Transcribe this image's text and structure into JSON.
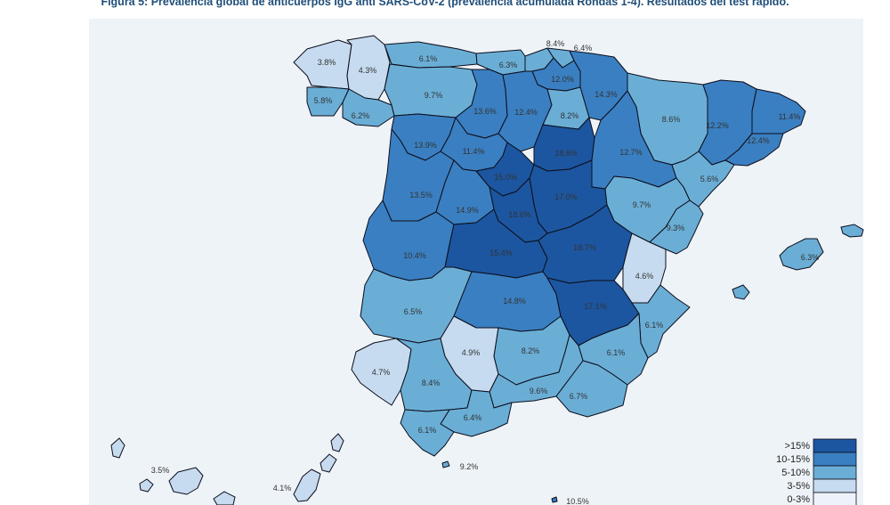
{
  "figure": {
    "title": "Figura 5: Prevalencia global de anticuerpos IgG anti SARS-CoV-2 (prevalencia acumulada Rondas 1-4). Resultados del test rápido."
  },
  "colors": {
    "c0_3": "#eef3fb",
    "c3_5": "#c6dbef",
    "c5_10": "#6aaed6",
    "c10_15": "#3a7fc1",
    "c15": "#1c56a0",
    "panel": "#eef3f8"
  },
  "legend": [
    {
      "label": ">15%",
      "class": "c15"
    },
    {
      "label": "10-15%",
      "class": "c10_15"
    },
    {
      "label": "5-10%",
      "class": "c5_10"
    },
    {
      "label": "3-5%",
      "class": "c3_5"
    },
    {
      "label": "0-3%",
      "class": "c0_3"
    }
  ],
  "provinces": [
    {
      "id": "a-coruna",
      "label": "3.8%",
      "value": 3.8,
      "class": "c3_5"
    },
    {
      "id": "lugo",
      "label": "4.3%",
      "value": 4.3,
      "class": "c3_5"
    },
    {
      "id": "pontevedra",
      "label": "5.8%",
      "value": 5.8,
      "class": "c5_10"
    },
    {
      "id": "ourense",
      "label": "6.2%",
      "value": 6.2,
      "class": "c5_10"
    },
    {
      "id": "asturias",
      "label": "6.1%",
      "value": 6.1,
      "class": "c5_10"
    },
    {
      "id": "cantabria",
      "label": "6.3%",
      "value": 6.3,
      "class": "c5_10"
    },
    {
      "id": "bizkaia",
      "label": "8.4%",
      "value": 8.4,
      "class": "c5_10"
    },
    {
      "id": "gipuzkoa",
      "label": "6.4%",
      "value": 6.4,
      "class": "c5_10"
    },
    {
      "id": "alava",
      "label": "12.0%",
      "value": 12.0,
      "class": "c10_15"
    },
    {
      "id": "navarra",
      "label": "14.3%",
      "value": 14.3,
      "class": "c10_15"
    },
    {
      "id": "leon",
      "label": "9.7%",
      "value": 9.7,
      "class": "c5_10"
    },
    {
      "id": "palencia",
      "label": "13.6%",
      "value": 13.6,
      "class": "c10_15"
    },
    {
      "id": "burgos",
      "label": "12.4%",
      "value": 12.4,
      "class": "c10_15"
    },
    {
      "id": "la-rioja",
      "label": "8.2%",
      "value": 8.2,
      "class": "c5_10"
    },
    {
      "id": "huesca",
      "label": "8.6%",
      "value": 8.6,
      "class": "c5_10"
    },
    {
      "id": "lleida",
      "label": "12.2%",
      "value": 12.2,
      "class": "c10_15"
    },
    {
      "id": "girona",
      "label": "11.4%",
      "value": 11.4,
      "class": "c10_15"
    },
    {
      "id": "barcelona",
      "label": "12.4%",
      "value": 12.4,
      "class": "c10_15"
    },
    {
      "id": "zamora",
      "label": "13.9%",
      "value": 13.9,
      "class": "c10_15"
    },
    {
      "id": "valladolid",
      "label": "11.4%",
      "value": 11.4,
      "class": "c10_15"
    },
    {
      "id": "soria",
      "label": "18.6%",
      "value": 18.6,
      "class": "c15"
    },
    {
      "id": "zaragoza",
      "label": "12.7%",
      "value": 12.7,
      "class": "c10_15"
    },
    {
      "id": "tarragona",
      "label": "5.6%",
      "value": 5.6,
      "class": "c5_10"
    },
    {
      "id": "salamanca",
      "label": "13.5%",
      "value": 13.5,
      "class": "c10_15"
    },
    {
      "id": "avila",
      "label": "14.9%",
      "value": 14.9,
      "class": "c10_15"
    },
    {
      "id": "segovia",
      "label": "15.0%",
      "value": 15.0,
      "class": "c15"
    },
    {
      "id": "guadalajara",
      "label": "17.0%",
      "value": 17.0,
      "class": "c15"
    },
    {
      "id": "madrid",
      "label": "18.6%",
      "value": 18.6,
      "class": "c15"
    },
    {
      "id": "teruel",
      "label": "9.7%",
      "value": 9.7,
      "class": "c5_10"
    },
    {
      "id": "castellon",
      "label": "9.3%",
      "value": 9.3,
      "class": "c5_10"
    },
    {
      "id": "caceres",
      "label": "10.4%",
      "value": 10.4,
      "class": "c10_15"
    },
    {
      "id": "toledo",
      "label": "15.4%",
      "value": 15.4,
      "class": "c15"
    },
    {
      "id": "cuenca",
      "label": "18.7%",
      "value": 18.7,
      "class": "c15"
    },
    {
      "id": "valencia",
      "label": "4.6%",
      "value": 4.6,
      "class": "c3_5"
    },
    {
      "id": "badajoz",
      "label": "6.5%",
      "value": 6.5,
      "class": "c5_10"
    },
    {
      "id": "ciudad-real",
      "label": "14.8%",
      "value": 14.8,
      "class": "c10_15"
    },
    {
      "id": "albacete",
      "label": "17.1%",
      "value": 17.1,
      "class": "c15"
    },
    {
      "id": "alicante",
      "label": "6.1%",
      "value": 6.1,
      "class": "c5_10"
    },
    {
      "id": "huelva",
      "label": "4.7%",
      "value": 4.7,
      "class": "c3_5"
    },
    {
      "id": "sevilla",
      "label": "8.4%",
      "value": 8.4,
      "class": "c5_10"
    },
    {
      "id": "cordoba",
      "label": "4.9%",
      "value": 4.9,
      "class": "c3_5"
    },
    {
      "id": "jaen",
      "label": "8.2%",
      "value": 8.2,
      "class": "c5_10"
    },
    {
      "id": "murcia",
      "label": "6.1%",
      "value": 6.1,
      "class": "c5_10"
    },
    {
      "id": "granada",
      "label": "9.6%",
      "value": 9.6,
      "class": "c5_10"
    },
    {
      "id": "almeria",
      "label": "6.7%",
      "value": 6.7,
      "class": "c5_10"
    },
    {
      "id": "malaga",
      "label": "6.4%",
      "value": 6.4,
      "class": "c5_10"
    },
    {
      "id": "cadiz",
      "label": "6.1%",
      "value": 6.1,
      "class": "c5_10"
    },
    {
      "id": "baleares",
      "label": "6.3%",
      "value": 6.3,
      "class": "c5_10"
    },
    {
      "id": "ceuta",
      "label": "9.2%",
      "value": 9.2,
      "class": "c5_10"
    },
    {
      "id": "melilla",
      "label": "10.5%",
      "value": 10.5,
      "class": "c10_15"
    },
    {
      "id": "sc-tenerife",
      "label": "3.5%",
      "value": 3.5,
      "class": "c3_5"
    },
    {
      "id": "las-palmas",
      "label": "4.1%",
      "value": 4.1,
      "class": "c3_5"
    }
  ]
}
